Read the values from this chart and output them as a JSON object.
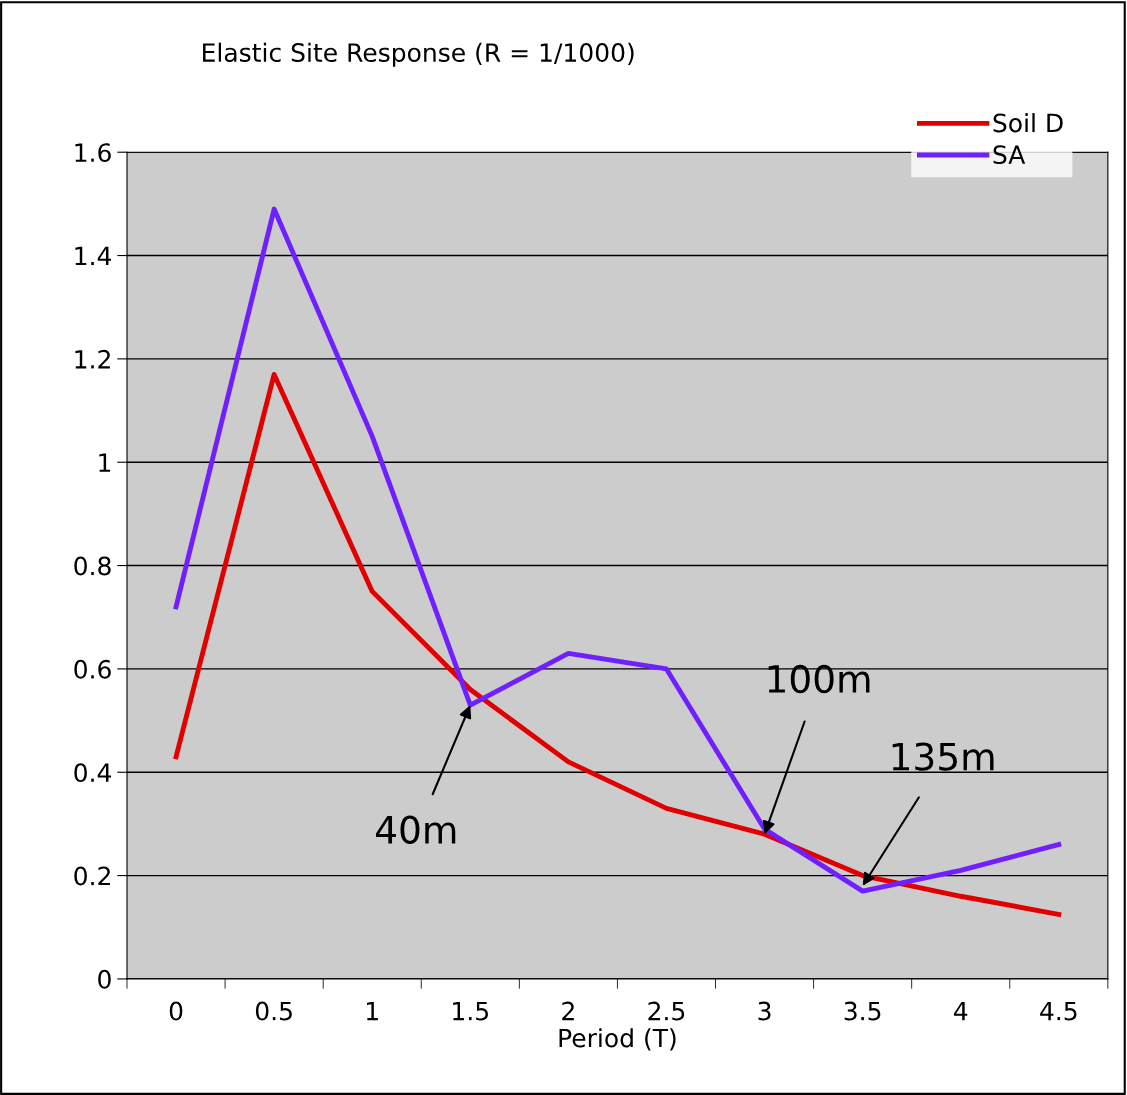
{
  "chart_data": {
    "type": "line",
    "title": "Elastic Site Response (R = 1/1000)",
    "xlabel": "Period (T)",
    "categories": [
      "0",
      "0.5",
      "1",
      "1.5",
      "2",
      "2.5",
      "3",
      "3.5",
      "4",
      "4.5"
    ],
    "series": [
      {
        "name": "Soil D",
        "color": "#e00000",
        "values": [
          0.43,
          1.17,
          0.75,
          0.56,
          0.42,
          0.33,
          0.28,
          0.2,
          0.16,
          0.125
        ]
      },
      {
        "name": "SA",
        "color": "#7020ff",
        "values": [
          0.72,
          1.49,
          1.05,
          0.53,
          0.63,
          0.6,
          0.29,
          0.17,
          0.21,
          0.26
        ]
      }
    ],
    "ylim": [
      0,
      1.6
    ],
    "yticks": [
      0,
      0.2,
      0.4,
      0.6,
      0.8,
      1,
      1.2,
      1.4,
      1.6
    ],
    "grid": "y",
    "legend": "top right",
    "marker": "none",
    "line_style": "solid",
    "annotations": [
      {
        "text": "40m",
        "x": "1.5",
        "y": 0.53
      },
      {
        "text": "100m",
        "x": "3",
        "y": 0.28
      },
      {
        "text": "135m",
        "x": "3.5",
        "y": 0.18
      }
    ]
  }
}
